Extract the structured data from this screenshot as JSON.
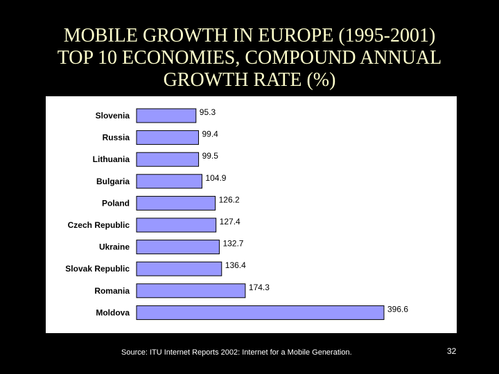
{
  "slide": {
    "title_lines": [
      "MOBILE GROWTH IN EUROPE (1995-2001)",
      "TOP 10 ECONOMIES, COMPOUND ANNUAL",
      "GROWTH RATE (%)"
    ],
    "source": "Source: ITU Internet Reports 2002: Internet for a Mobile Generation.",
    "page_number": "32"
  },
  "colors": {
    "background": "#000000",
    "title": "#ffffcc",
    "bar_fill": "#9999ff",
    "bar_stroke": "#000000",
    "panel": "#ffffff"
  },
  "chart_data": {
    "type": "bar",
    "orientation": "horizontal",
    "categories": [
      "Slovenia",
      "Russia",
      "Lithuania",
      "Bulgaria",
      "Poland",
      "Czech Republic",
      "Ukraine",
      "Slovak Republic",
      "Romania",
      "Moldova"
    ],
    "values": [
      95.3,
      99.4,
      99.5,
      104.9,
      126.2,
      127.4,
      132.7,
      136.4,
      174.3,
      396.6
    ],
    "value_labels": [
      "95.3",
      "99.4",
      "99.5",
      "104.9",
      "126.2",
      "127.4",
      "132.7",
      "136.4",
      "174.3",
      "396.6"
    ],
    "xlim": [
      0,
      396.6
    ],
    "grid": false,
    "legend": "none"
  }
}
